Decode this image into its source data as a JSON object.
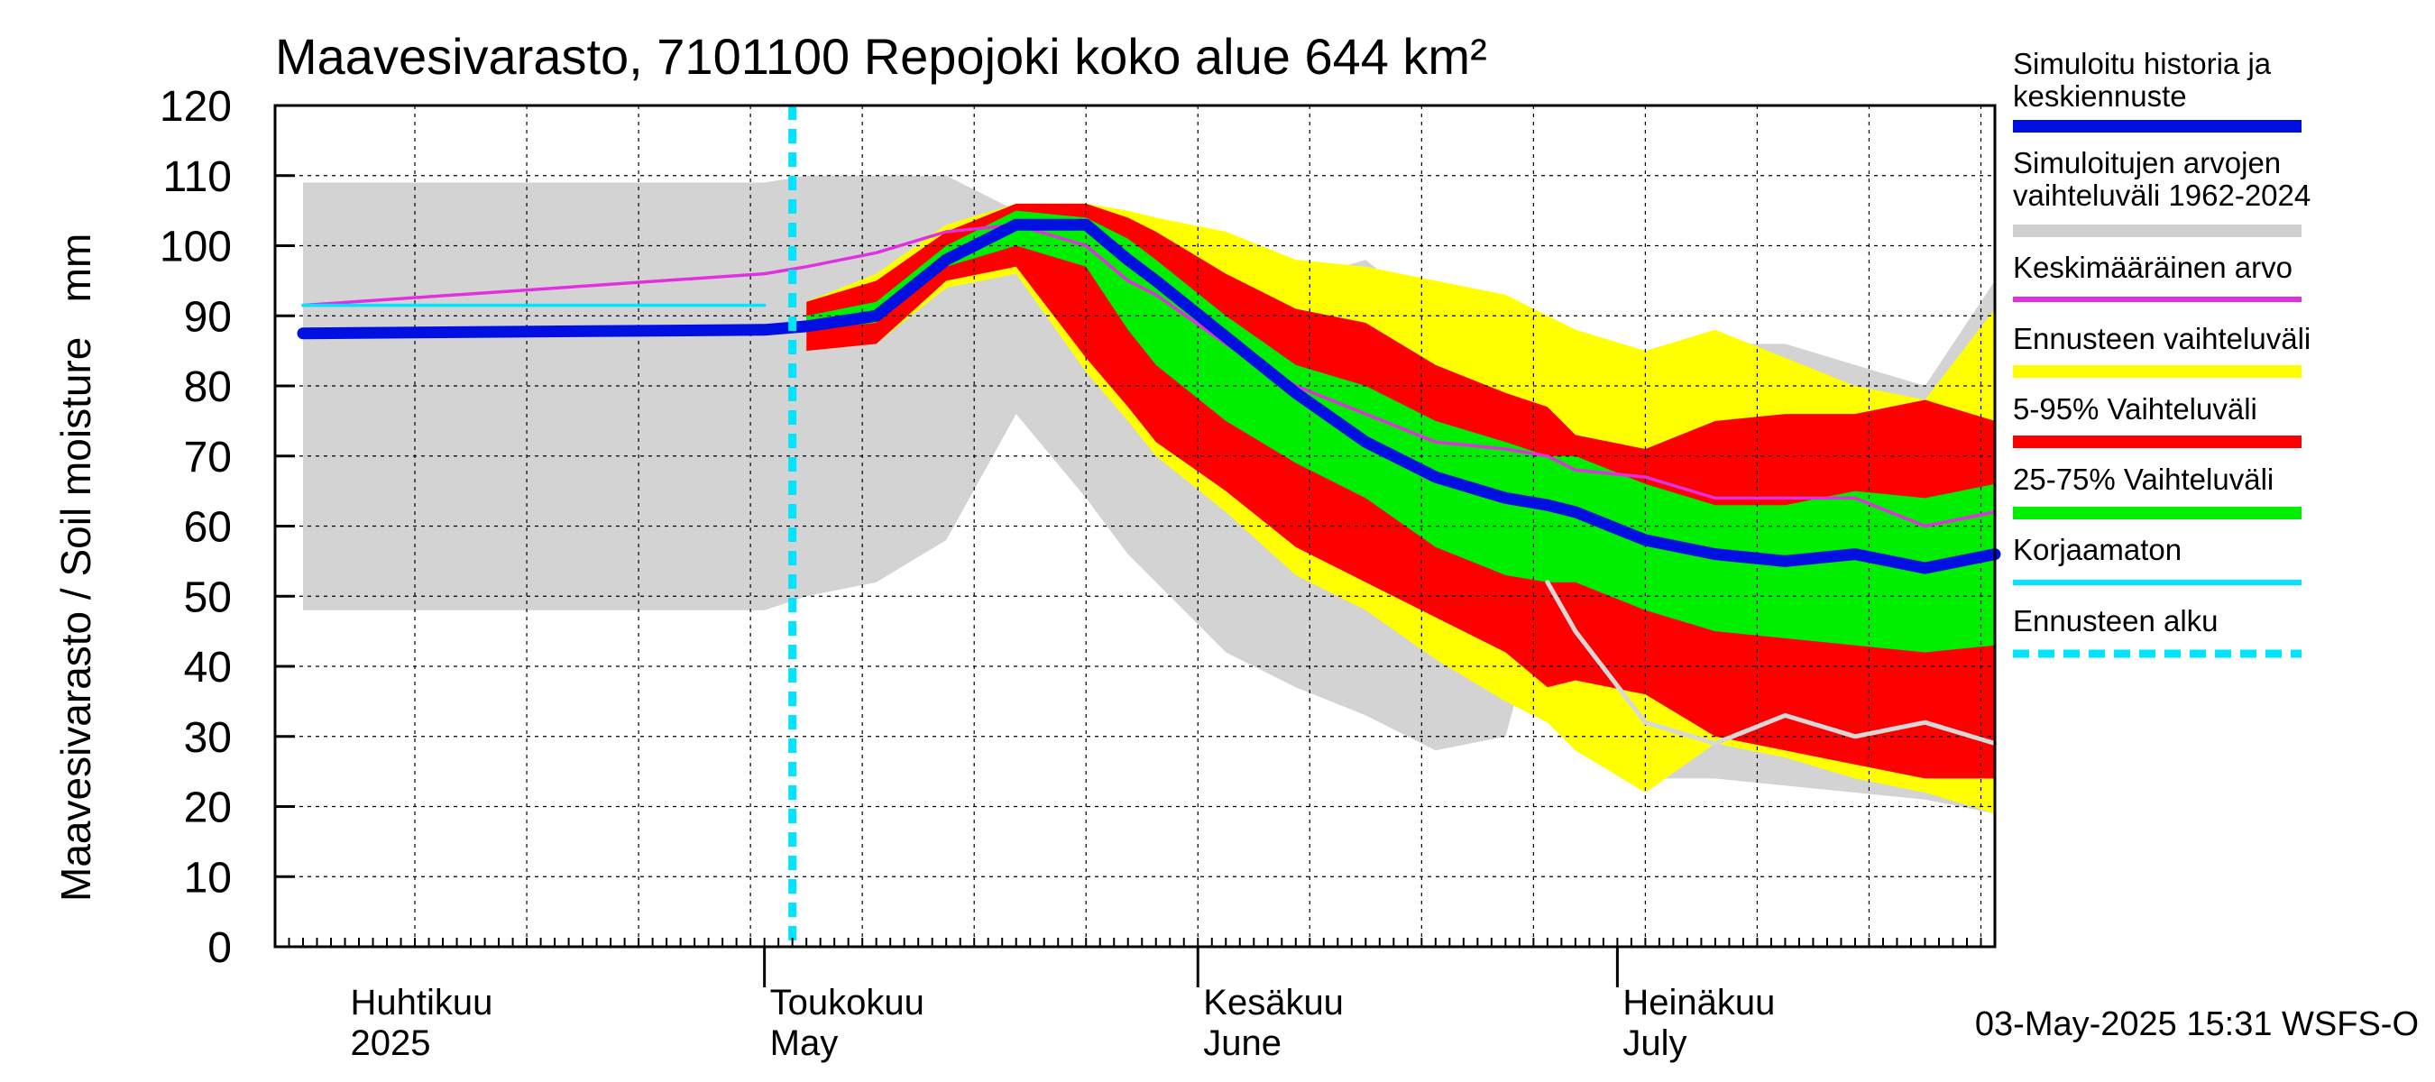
{
  "chart_data": {
    "type": "area",
    "title": "Maavesivarasto, 7101100 Repojoki koko alue 644 km²",
    "ylabel": "Maavesivarasto / Soil moisture   mm",
    "ylim": [
      0,
      120
    ],
    "yticks": [
      0,
      10,
      20,
      30,
      40,
      50,
      60,
      70,
      80,
      90,
      100,
      110,
      120
    ],
    "xlim_day": [
      -5,
      118
    ],
    "month_labels": [
      {
        "fi": "Huhtikuu",
        "en": "2025",
        "day": 0
      },
      {
        "fi": "Toukokuu",
        "en": "May",
        "day": 30
      },
      {
        "fi": "Kesäkuu",
        "en": "June",
        "day": 61
      },
      {
        "fi": "Heinäkuu",
        "en": "July",
        "day": 91
      }
    ],
    "month_boundaries_day": [
      30,
      61,
      91
    ],
    "forecast_start_day": 32,
    "footer": "03-May-2025 15:31 WSFS-O",
    "legend": [
      {
        "label": "Simuloitu historia ja keskiennuste",
        "color": "#0010e0",
        "style": "thick"
      },
      {
        "label": "Simuloitujen arvojen vaihteluväli 1962-2024",
        "color": "#d0d0d0",
        "style": "thick"
      },
      {
        "label": "Keskimääräinen arvo",
        "color": "#e030e0",
        "style": "thin"
      },
      {
        "label": "Ennusteen vaihteluväli",
        "color": "#ffff00",
        "style": "thick"
      },
      {
        "label": "5-95% Vaihteluväli",
        "color": "#ff0000",
        "style": "thick"
      },
      {
        "label": "25-75% Vaihteluväli",
        "color": "#00ee00",
        "style": "thick"
      },
      {
        "label": "Korjaamaton",
        "color": "#00e5ff",
        "style": "thin"
      },
      {
        "label": "Ennusteen alku",
        "color": "#00e5ff",
        "style": "dashed"
      }
    ],
    "x": [
      -3,
      30,
      33,
      38,
      43,
      48,
      53,
      56,
      58,
      63,
      68,
      73,
      78,
      83,
      86,
      88,
      93,
      98,
      103,
      108,
      113,
      118
    ],
    "series": [
      {
        "name": "hist_upper",
        "values": [
          109,
          109,
          110,
          110,
          110,
          105,
          104,
          102,
          100,
          99,
          95,
          98,
          90,
          89,
          90,
          88,
          85,
          86,
          86,
          83,
          80,
          95
        ]
      },
      {
        "name": "hist_lower",
        "values": [
          48,
          48,
          50,
          52,
          58,
          76,
          64,
          56,
          52,
          42,
          37,
          33,
          28,
          30,
          52,
          32,
          24,
          24,
          23,
          22,
          21,
          19
        ]
      },
      {
        "name": "ens_upper",
        "values": [
          null,
          null,
          92,
          96,
          103,
          106,
          106,
          105,
          104,
          102,
          98,
          97,
          95,
          93,
          90,
          88,
          85,
          88,
          84,
          80,
          78,
          91
        ]
      },
      {
        "name": "ens_lower",
        "values": [
          null,
          null,
          85,
          86,
          94,
          96,
          82,
          75,
          70,
          62,
          53,
          48,
          41,
          35,
          32,
          28,
          22,
          29,
          27,
          24,
          22,
          19
        ]
      },
      {
        "name": "p95",
        "values": [
          null,
          null,
          92,
          95,
          102,
          106,
          106,
          104,
          102,
          96,
          91,
          89,
          83,
          79,
          77,
          73,
          71,
          75,
          76,
          76,
          78,
          75
        ]
      },
      {
        "name": "p5",
        "values": [
          null,
          null,
          85,
          86,
          95,
          97,
          84,
          77,
          72,
          65,
          57,
          52,
          47,
          42,
          37,
          38,
          36,
          30,
          28,
          26,
          24,
          24
        ]
      },
      {
        "name": "p75",
        "values": [
          null,
          null,
          90,
          92,
          100,
          105,
          104,
          101,
          98,
          90,
          83,
          80,
          75,
          72,
          70,
          70,
          66,
          63,
          63,
          65,
          64,
          66
        ]
      },
      {
        "name": "p25",
        "values": [
          null,
          null,
          88,
          89,
          97,
          100,
          97,
          88,
          83,
          75,
          69,
          64,
          57,
          53,
          52,
          52,
          48,
          45,
          44,
          43,
          42,
          43
        ]
      },
      {
        "name": "Simuloitu historia ja keskiennuste",
        "values": [
          87.5,
          88,
          88.5,
          90,
          98,
          103,
          103,
          98,
          95,
          87,
          79,
          72,
          67,
          64,
          63,
          62,
          58,
          56,
          55,
          56,
          54,
          56
        ]
      },
      {
        "name": "Keskimääräinen arvo",
        "values": [
          91.5,
          96,
          97,
          99,
          102,
          103,
          100,
          95,
          93,
          86,
          80,
          76,
          72,
          71,
          70,
          68,
          67,
          64,
          64,
          64,
          60,
          62
        ]
      },
      {
        "name": "Korjaamaton",
        "values": [
          91.5,
          91.5,
          null,
          null,
          null,
          null,
          null,
          null,
          null,
          null,
          null,
          null,
          null,
          null,
          null,
          null,
          null,
          null,
          null,
          null,
          null,
          null
        ]
      },
      {
        "name": "min_year",
        "values": [
          null,
          null,
          null,
          null,
          null,
          null,
          null,
          null,
          null,
          null,
          null,
          null,
          null,
          null,
          52,
          45,
          32,
          29,
          33,
          30,
          32,
          29
        ]
      }
    ]
  }
}
